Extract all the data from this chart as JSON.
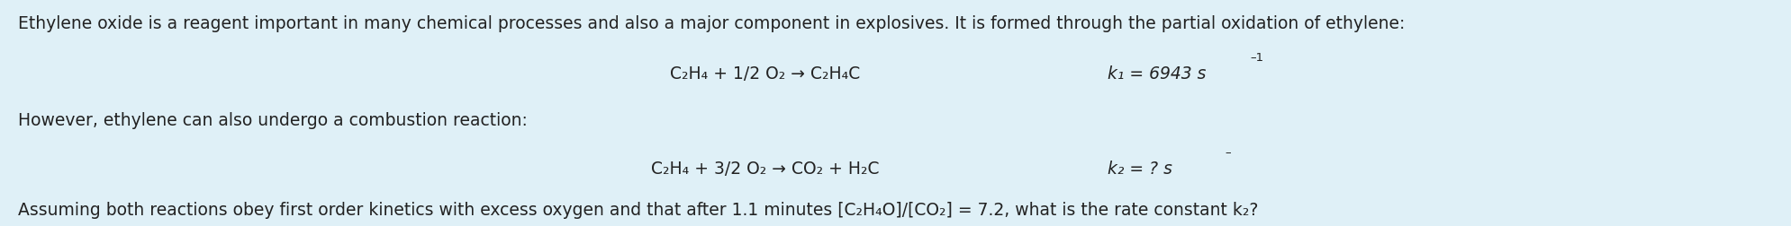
{
  "bg_color": "#dff0f7",
  "text_color": "#222222",
  "figsize": [
    19.9,
    2.52
  ],
  "dpi": 100,
  "line1": "Ethylene oxide is a reagent important in many chemical processes and also a major component in explosives. It is formed through the partial oxidation of ethylene:",
  "eq1": "C₂H₄ + 1/2 O₂ → C₂H₄C",
  "k1_main": "k₁ = 6943 s",
  "k1_sup": "–1",
  "line2": "However, ethylene can also undergo a combustion reaction:",
  "eq2": "C₂H₄ + 3/2 O₂ → CO₂ + H₂C",
  "k2_main": "k₂ = ? s",
  "k2_sup": "–",
  "line3": "Assuming both reactions obey first order kinetics with excess oxygen and that after 1.1 minutes [C₂H₄O]/[CO₂] = 7.2, what is the rate constant k₂?",
  "fs_main": 13.5,
  "fs_sup": 9.5,
  "font_family": "DejaVu Sans"
}
